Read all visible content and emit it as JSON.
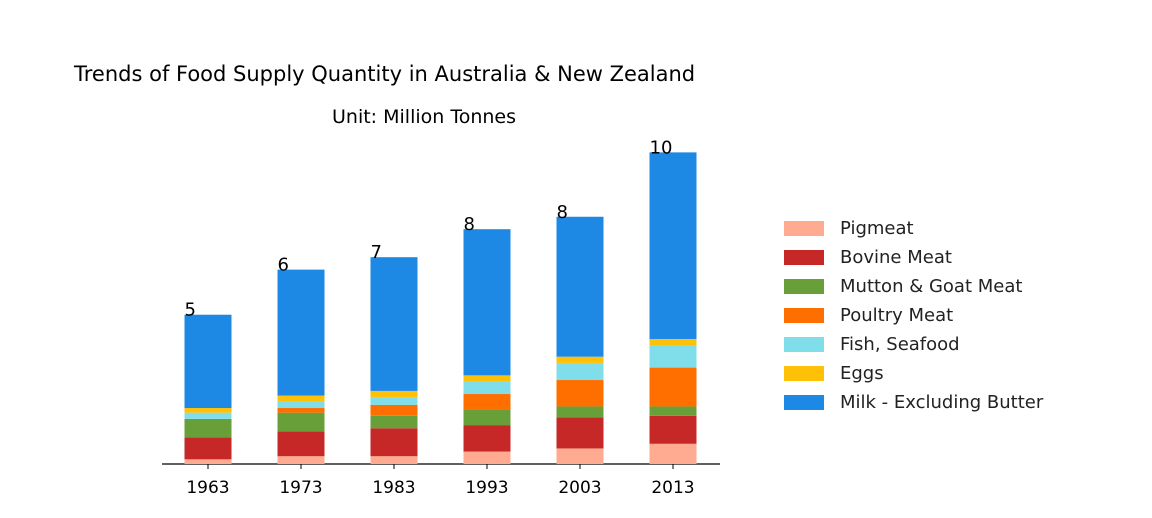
{
  "chart_data": {
    "type": "bar",
    "stacked": true,
    "title": "Trends of Food Supply Quantity in Australia & New Zealand",
    "subtitle": "Unit: Million Tonnes",
    "categories": [
      "1963",
      "1973",
      "1983",
      "1993",
      "2003",
      "2013"
    ],
    "ylim": [
      0,
      10.5
    ],
    "grid": false,
    "legend_position": "right",
    "totals": [
      "5",
      "6",
      "7",
      "8",
      "8",
      "10"
    ],
    "series": [
      {
        "name": "Pigmeat",
        "color": "#ffab91",
        "values": [
          0.15,
          0.25,
          0.25,
          0.4,
          0.5,
          0.65
        ]
      },
      {
        "name": "Bovine Meat",
        "color": "#c62828",
        "values": [
          0.7,
          0.8,
          0.9,
          0.85,
          1.0,
          0.9
        ]
      },
      {
        "name": "Mutton & Goat Meat",
        "color": "#689f38",
        "values": [
          0.6,
          0.6,
          0.4,
          0.5,
          0.35,
          0.3
        ]
      },
      {
        "name": "Poultry Meat",
        "color": "#ff6f00",
        "values": [
          0.0,
          0.15,
          0.35,
          0.5,
          0.85,
          1.25
        ]
      },
      {
        "name": "Fish, Seafood",
        "color": "#80deea",
        "values": [
          0.2,
          0.2,
          0.25,
          0.4,
          0.55,
          0.7
        ]
      },
      {
        "name": "Eggs",
        "color": "#ffc107",
        "values": [
          0.15,
          0.2,
          0.2,
          0.2,
          0.2,
          0.22
        ]
      },
      {
        "name": "Milk - Excluding Butter",
        "color": "#1e88e5",
        "values": [
          3.0,
          4.05,
          4.3,
          4.7,
          4.5,
          6.0
        ]
      }
    ]
  }
}
